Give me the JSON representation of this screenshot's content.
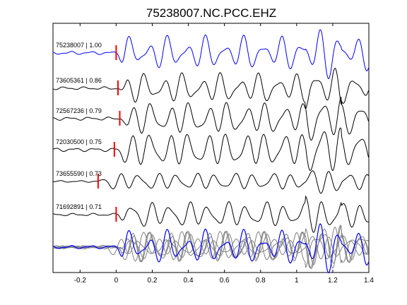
{
  "chart_data": {
    "type": "line",
    "title": "75238007.NC.PCC.EHZ",
    "xlabel": "",
    "ylabel": "",
    "xlim": [
      -0.35,
      1.4
    ],
    "xticks": [
      -0.2,
      0,
      0.2,
      0.4,
      0.6,
      0.8,
      1,
      1.2,
      1.4
    ],
    "xtick_labels": [
      "-0.2",
      "0",
      "0.2",
      "0.4",
      "0.6",
      "0.8",
      "1",
      "1.2",
      "1.4"
    ],
    "grid": false,
    "colors": {
      "reference": "#0000ff",
      "trace": "#000000",
      "overlay": "#808080",
      "pick": "#ff0000"
    },
    "traces": [
      {
        "label": "75238007 | 1.00",
        "pick_time": 0.0,
        "reference": true,
        "seed": 7,
        "amplitude": 1.0
      },
      {
        "label": "73605361 | 0.86",
        "pick_time": 0.01,
        "reference": false,
        "seed": 13,
        "amplitude": 0.9
      },
      {
        "label": "72567236 | 0.79",
        "pick_time": 0.02,
        "reference": false,
        "seed": 21,
        "amplitude": 1.0
      },
      {
        "label": "72030500 | 0.75",
        "pick_time": -0.01,
        "reference": false,
        "seed": 29,
        "amplitude": 1.1
      },
      {
        "label": "73655590 | 0.73",
        "pick_time": -0.1,
        "reference": false,
        "seed": 37,
        "amplitude": 0.55
      },
      {
        "label": "71692891 | 0.71",
        "pick_time": 0.0,
        "reference": false,
        "seed": 43,
        "amplitude": 0.8
      }
    ]
  }
}
